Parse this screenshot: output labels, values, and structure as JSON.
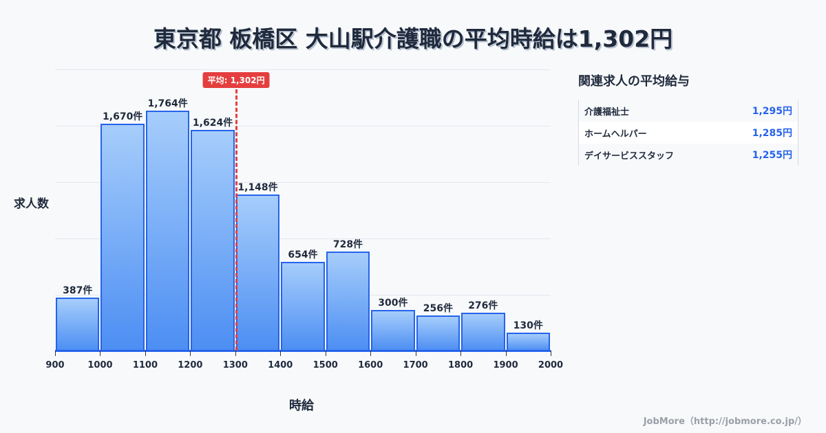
{
  "title": "東京都 板橋区 大山駅介護職の平均時給は1,302円",
  "chart_data": {
    "type": "bar",
    "title": "東京都 板橋区 大山駅介護職の平均時給は1,302円",
    "xlabel": "時給",
    "ylabel": "求人数",
    "x_ticks": [
      "900",
      "1000",
      "1100",
      "1200",
      "1300",
      "1400",
      "1500",
      "1600",
      "1700",
      "1800",
      "1900",
      "2000"
    ],
    "categories": [
      "900-1000",
      "1000-1100",
      "1100-1200",
      "1200-1300",
      "1300-1400",
      "1400-1500",
      "1500-1600",
      "1600-1700",
      "1700-1800",
      "1800-1900",
      "1900-2000"
    ],
    "values": [
      387,
      1670,
      1764,
      1624,
      1148,
      654,
      728,
      300,
      256,
      276,
      130
    ],
    "value_labels": [
      "387件",
      "1,670件",
      "1,764件",
      "1,624件",
      "1,148件",
      "654件",
      "728件",
      "300件",
      "256件",
      "276件",
      "130件"
    ],
    "xlim": [
      900,
      2000
    ],
    "grid": true,
    "average": {
      "value": 1302,
      "label": "平均: 1,302円"
    },
    "colors": {
      "bar_top": "#a6cdfb",
      "bar_bottom": "#4c8ef3",
      "bar_border": "#2563eb",
      "average_line": "#e53e3e"
    }
  },
  "side": {
    "title": "関連求人の平均給与",
    "rows": [
      {
        "name": "介護福祉士",
        "value": "1,295円"
      },
      {
        "name": "ホームヘルパー",
        "value": "1,285円"
      },
      {
        "name": "デイサービススタッフ",
        "value": "1,255円"
      }
    ]
  },
  "footer": "JobMore（http://jobmore.co.jp/）"
}
